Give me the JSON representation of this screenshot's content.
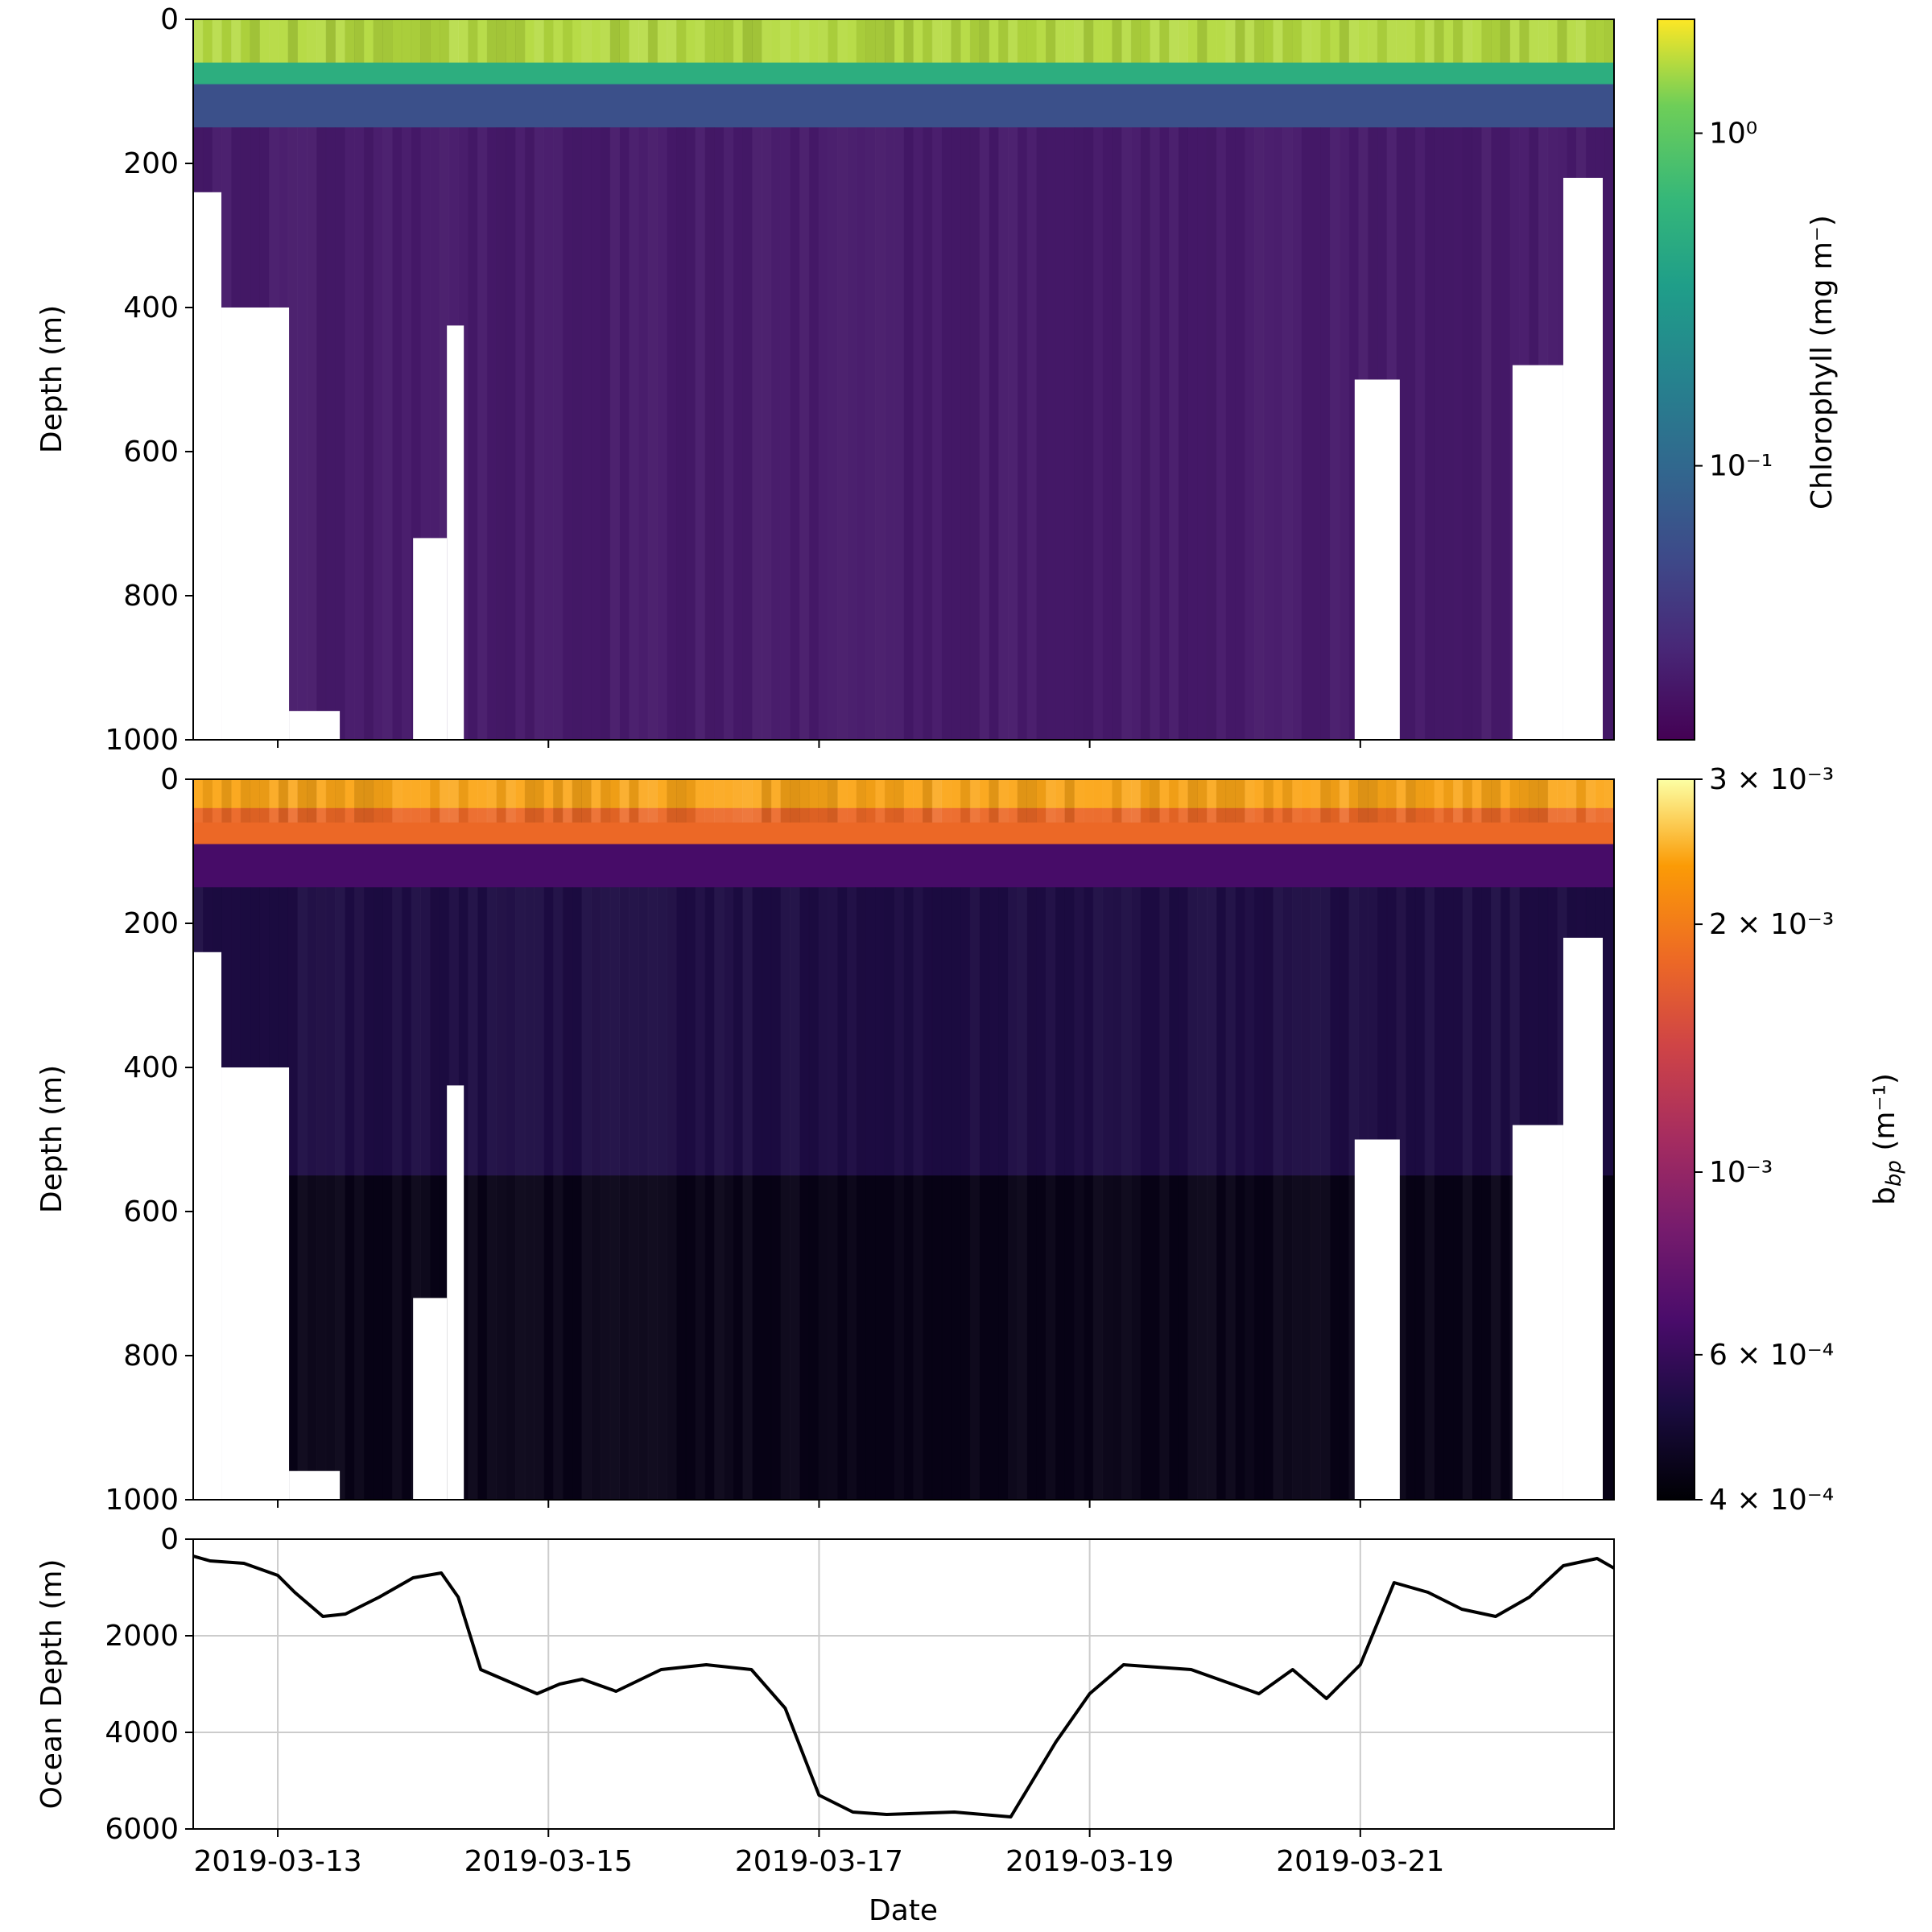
{
  "chart_data": [
    {
      "type": "heatmap",
      "panel": "top",
      "ylabel": "Depth (m)",
      "ylim": [
        1000,
        0
      ],
      "yticks": [
        0,
        200,
        400,
        600,
        800,
        1000
      ],
      "x_range": [
        "2019-03-12T09:00",
        "2019-03-22T21:00"
      ],
      "colormap": "viridis",
      "colorbar": {
        "label": "Chlorophyll (mg m⁻)",
        "scale": "log",
        "range": [
          0.015,
          2.2
        ],
        "tick_values": [
          1.0,
          0.1
        ],
        "tick_labels": [
          "10⁰",
          "10⁻¹"
        ]
      },
      "layers": [
        {
          "depth_m": [
            0,
            60
          ],
          "value": 1.6
        },
        {
          "depth_m": [
            60,
            90
          ],
          "value": 0.5
        },
        {
          "depth_m": [
            90,
            150
          ],
          "value": 0.06
        },
        {
          "depth_m": [
            150,
            1000
          ],
          "value": 0.022
        }
      ],
      "no_data_regions": [
        {
          "x": [
            "2019-03-12T09:00",
            "2019-03-12T14:00"
          ],
          "depth_from_m": 240
        },
        {
          "x": [
            "2019-03-12T14:00",
            "2019-03-13T02:00"
          ],
          "depth_from_m": 400
        },
        {
          "x": [
            "2019-03-13T02:00",
            "2019-03-13T11:00"
          ],
          "depth_from_m": 960
        },
        {
          "x": [
            "2019-03-14T00:00",
            "2019-03-14T06:00"
          ],
          "depth_from_m": 720
        },
        {
          "x": [
            "2019-03-14T06:00",
            "2019-03-14T09:00"
          ],
          "depth_from_m": 425
        },
        {
          "x": [
            "2019-03-20T23:00",
            "2019-03-21T07:00"
          ],
          "depth_from_m": 500
        },
        {
          "x": [
            "2019-03-22T03:00",
            "2019-03-22T12:00"
          ],
          "depth_from_m": 480
        },
        {
          "x": [
            "2019-03-22T12:00",
            "2019-03-22T19:00"
          ],
          "depth_from_m": 220
        }
      ]
    },
    {
      "type": "heatmap",
      "panel": "middle",
      "ylabel": "Depth (m)",
      "ylim": [
        1000,
        0
      ],
      "yticks": [
        0,
        200,
        400,
        600,
        800,
        1000
      ],
      "x_range": [
        "2019-03-12T09:00",
        "2019-03-22T21:00"
      ],
      "colormap": "inferno",
      "colorbar": {
        "label": "b",
        "label_subscript": "bp",
        "label_unit": " (m⁻¹)",
        "scale": "log",
        "range": [
          0.0004,
          0.003
        ],
        "tick_values": [
          0.003,
          0.002,
          0.001,
          0.0006,
          0.0004
        ],
        "tick_labels": [
          "3 × 10⁻³",
          "2 × 10⁻³",
          "10⁻³",
          "6 × 10⁻⁴",
          "4 × 10⁻⁴"
        ]
      },
      "layers": [
        {
          "depth_m": [
            0,
            40
          ],
          "value": 0.0024
        },
        {
          "depth_m": [
            40,
            90
          ],
          "value": 0.0018
        },
        {
          "depth_m": [
            90,
            150
          ],
          "value": 0.00065
        },
        {
          "depth_m": [
            150,
            550
          ],
          "value": 0.00052
        },
        {
          "depth_m": [
            550,
            1000
          ],
          "value": 0.00043
        }
      ],
      "no_data_regions": "same as top panel"
    },
    {
      "type": "line",
      "panel": "bottom",
      "xlabel": "Date",
      "ylabel": "Ocean Depth (m)",
      "ylim": [
        6000,
        0
      ],
      "yticks": [
        0,
        2000,
        4000,
        6000
      ],
      "grid": true,
      "xticks": [
        "2019-03-13",
        "2019-03-15",
        "2019-03-17",
        "2019-03-19",
        "2019-03-21"
      ],
      "x": [
        "2019-03-12T09:00",
        "2019-03-12T12:00",
        "2019-03-12T18:00",
        "2019-03-13T00:00",
        "2019-03-13T03:00",
        "2019-03-13T08:00",
        "2019-03-13T12:00",
        "2019-03-13T18:00",
        "2019-03-14T00:00",
        "2019-03-14T05:00",
        "2019-03-14T08:00",
        "2019-03-14T12:00",
        "2019-03-14T17:00",
        "2019-03-14T22:00",
        "2019-03-15T02:00",
        "2019-03-15T06:00",
        "2019-03-15T12:00",
        "2019-03-15T20:00",
        "2019-03-16T04:00",
        "2019-03-16T12:00",
        "2019-03-16T18:00",
        "2019-03-17T00:00",
        "2019-03-17T06:00",
        "2019-03-17T12:00",
        "2019-03-18T00:00",
        "2019-03-18T10:00",
        "2019-03-18T18:00",
        "2019-03-19T00:00",
        "2019-03-19T06:00",
        "2019-03-19T18:00",
        "2019-03-20T06:00",
        "2019-03-20T12:00",
        "2019-03-20T18:00",
        "2019-03-21T00:00",
        "2019-03-21T06:00",
        "2019-03-21T12:00",
        "2019-03-21T18:00",
        "2019-03-22T00:00",
        "2019-03-22T06:00",
        "2019-03-22T12:00",
        "2019-03-22T18:00",
        "2019-03-22T21:00"
      ],
      "y": [
        350,
        450,
        500,
        750,
        1100,
        1600,
        1550,
        1200,
        800,
        700,
        1200,
        2700,
        2950,
        3200,
        3000,
        2900,
        3150,
        2700,
        2600,
        2700,
        3500,
        5300,
        5650,
        5700,
        5650,
        5750,
        4200,
        3200,
        2600,
        2700,
        3200,
        2700,
        3300,
        2600,
        900,
        1100,
        1450,
        1600,
        1200,
        550,
        400,
        600
      ]
    }
  ]
}
